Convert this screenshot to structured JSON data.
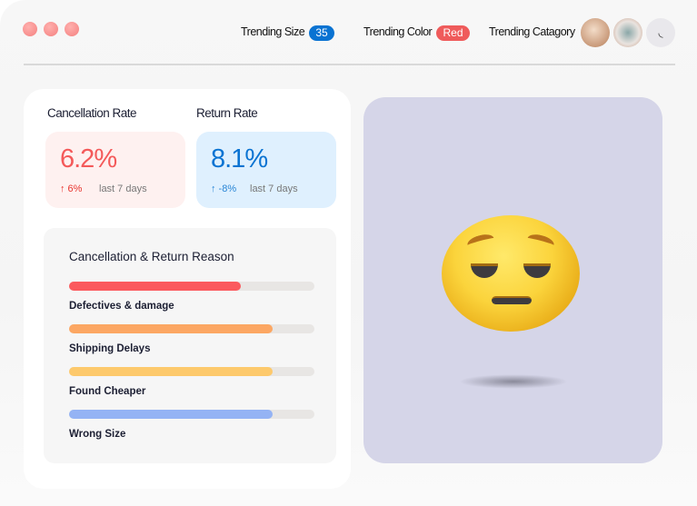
{
  "window": {
    "controls": [
      "close",
      "minimize",
      "maximize"
    ],
    "control_color": "#f4807f"
  },
  "header": {
    "trending_size_label": "Trending Size",
    "trending_size_value": "35",
    "size_badge_color": "#0a73d2",
    "trending_color_label": "Trending Color",
    "trending_color_value": "Red",
    "color_badge_color": "#ef5b5b",
    "trending_category_label": "Trending Catagory"
  },
  "stats": [
    {
      "label": "Cancellation Rate",
      "value": "6.2%",
      "delta": "↑ 6%",
      "period": "last 7 days",
      "color": "#f45a5a",
      "bg": "#fef1f0"
    },
    {
      "label": "Return Rate",
      "value": "8.1%",
      "delta": "↑ -8%",
      "period": "last 7 days",
      "color": "#0a73d2",
      "bg": "#dff0fe"
    }
  ],
  "reasons": {
    "title": "Cancellation & Return Reason",
    "items": [
      {
        "label": "Defectives & damage",
        "percent": 70,
        "color": "#fb5a5e"
      },
      {
        "label": "Shipping Delays",
        "percent": 83,
        "color": "#fca763"
      },
      {
        "label": "Found Cheaper",
        "percent": 83,
        "color": "#fdc96c"
      },
      {
        "label": "Wrong Size",
        "percent": 83,
        "color": "#94b3f4"
      }
    ]
  },
  "illustration": {
    "icon": "pensive-face-emoji"
  }
}
